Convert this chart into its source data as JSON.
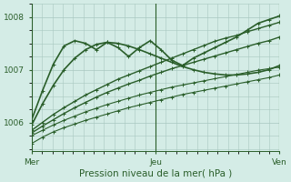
{
  "bg_color": "#d4ece6",
  "grid_color": "#a8c8c0",
  "line_color": "#2a5e2a",
  "marker_color": "#2a5e2a",
  "xlabel": "Pression niveau de la mer( hPa )",
  "xlabel_color": "#2a5e2a",
  "tick_color": "#2a5e2a",
  "yticks": [
    1006,
    1007,
    1008
  ],
  "ylim": [
    1005.45,
    1008.25
  ],
  "xlim": [
    0,
    48
  ],
  "xtick_positions": [
    0,
    24,
    48
  ],
  "xtick_labels": [
    "Mer",
    "Jeu",
    "Ven"
  ],
  "series": [
    [
      1005.85,
      1006.0,
      1006.15,
      1006.28,
      1006.4,
      1006.52,
      1006.62,
      1006.72,
      1006.82,
      1006.9,
      1006.98,
      1007.06,
      1007.14,
      1007.22,
      1007.3,
      1007.38,
      1007.46,
      1007.54,
      1007.6,
      1007.65,
      1007.72,
      1007.78,
      1007.84,
      1007.9
    ],
    [
      1005.8,
      1005.93,
      1006.05,
      1006.17,
      1006.28,
      1006.38,
      1006.48,
      1006.57,
      1006.65,
      1006.73,
      1006.8,
      1006.88,
      1006.95,
      1007.02,
      1007.08,
      1007.14,
      1007.2,
      1007.26,
      1007.32,
      1007.38,
      1007.44,
      1007.5,
      1007.55,
      1007.62
    ],
    [
      1005.75,
      1005.85,
      1005.95,
      1006.04,
      1006.12,
      1006.2,
      1006.27,
      1006.34,
      1006.4,
      1006.46,
      1006.52,
      1006.57,
      1006.62,
      1006.67,
      1006.71,
      1006.75,
      1006.79,
      1006.83,
      1006.87,
      1006.91,
      1006.95,
      1006.99,
      1007.02,
      1007.05
    ],
    [
      1005.95,
      1006.35,
      1006.7,
      1007.0,
      1007.22,
      1007.38,
      1007.48,
      1007.52,
      1007.5,
      1007.45,
      1007.38,
      1007.3,
      1007.22,
      1007.14,
      1007.06,
      1007.0,
      1006.95,
      1006.92,
      1006.9,
      1006.9,
      1006.92,
      1006.95,
      1007.0,
      1007.08
    ],
    [
      1006.05,
      1006.6,
      1007.1,
      1007.45,
      1007.55,
      1007.5,
      1007.38,
      1007.52,
      1007.42,
      1007.25,
      1007.42,
      1007.55,
      1007.38,
      1007.18,
      1007.08,
      1007.22,
      1007.32,
      1007.42,
      1007.52,
      1007.62,
      1007.75,
      1007.88,
      1007.95,
      1008.02
    ],
    [
      1005.6,
      1005.72,
      1005.82,
      1005.9,
      1005.97,
      1006.04,
      1006.1,
      1006.16,
      1006.22,
      1006.28,
      1006.33,
      1006.38,
      1006.43,
      1006.48,
      1006.53,
      1006.57,
      1006.61,
      1006.65,
      1006.69,
      1006.73,
      1006.77,
      1006.81,
      1006.85,
      1006.9
    ]
  ]
}
